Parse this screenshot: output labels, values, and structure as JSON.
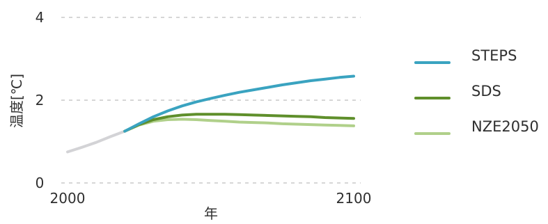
{
  "chart_data": {
    "type": "line",
    "title": "",
    "xlabel": "年",
    "ylabel": "温度[℃]",
    "xlim": [
      2000,
      2100
    ],
    "ylim": [
      0,
      4
    ],
    "x_ticks": [
      "2000",
      "2100"
    ],
    "y_ticks": [
      "0",
      "2",
      "4"
    ],
    "grid": true,
    "legend_position": "right",
    "history": {
      "color": "#d3d3d6",
      "x": [
        2000,
        2005,
        2010,
        2015,
        2020
      ],
      "y": [
        0.75,
        0.86,
        0.98,
        1.12,
        1.25
      ]
    },
    "series": [
      {
        "name": "STEPS",
        "color": "#3aa3c0",
        "x": [
          2020,
          2025,
          2030,
          2035,
          2040,
          2045,
          2050,
          2055,
          2060,
          2065,
          2070,
          2075,
          2080,
          2085,
          2090,
          2095,
          2100
        ],
        "y": [
          1.25,
          1.43,
          1.6,
          1.74,
          1.86,
          1.96,
          2.04,
          2.12,
          2.19,
          2.25,
          2.31,
          2.37,
          2.42,
          2.47,
          2.51,
          2.55,
          2.58
        ]
      },
      {
        "name": "SDS",
        "color": "#5f8f2b",
        "x": [
          2020,
          2025,
          2030,
          2035,
          2040,
          2045,
          2050,
          2055,
          2060,
          2065,
          2070,
          2075,
          2080,
          2085,
          2090,
          2095,
          2100
        ],
        "y": [
          1.25,
          1.41,
          1.53,
          1.6,
          1.64,
          1.66,
          1.66,
          1.66,
          1.65,
          1.64,
          1.63,
          1.62,
          1.61,
          1.6,
          1.58,
          1.57,
          1.56
        ]
      },
      {
        "name": "NZE2050",
        "color": "#b0d08a",
        "x": [
          2020,
          2025,
          2030,
          2035,
          2040,
          2045,
          2050,
          2055,
          2060,
          2065,
          2070,
          2075,
          2080,
          2085,
          2090,
          2095,
          2100
        ],
        "y": [
          1.25,
          1.4,
          1.49,
          1.53,
          1.54,
          1.53,
          1.51,
          1.49,
          1.47,
          1.46,
          1.45,
          1.43,
          1.42,
          1.41,
          1.4,
          1.39,
          1.38
        ]
      }
    ]
  }
}
